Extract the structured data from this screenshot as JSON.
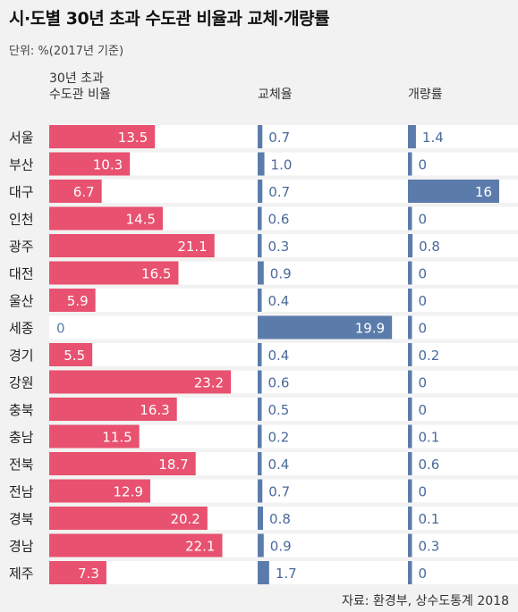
{
  "title": "시·도별 30년 초과 수도관 비율과 교체·개량률",
  "unit": "단위: %(2017년 기준)",
  "source": "자료: 환경부, 상수도통계 2018",
  "colors": {
    "old_pipe_bar": "#e8516f",
    "rate_bar": "#5b7cab",
    "row_band": "#ffffff",
    "background": "#f2f2f2"
  },
  "chart_data": {
    "type": "bar",
    "orientation": "horizontal",
    "categories": [
      "서울",
      "부산",
      "대구",
      "인천",
      "광주",
      "대전",
      "울산",
      "세종",
      "경기",
      "강원",
      "충북",
      "충남",
      "전북",
      "전남",
      "경북",
      "경남",
      "제주"
    ],
    "series": [
      {
        "name": "30년 초과 수도관 비율",
        "header_lines": [
          "30년 초과",
          "수도관 비율"
        ],
        "values": [
          13.5,
          10.3,
          6.7,
          14.5,
          21.1,
          16.5,
          5.9,
          0,
          5.5,
          23.2,
          16.3,
          11.5,
          18.7,
          12.9,
          20.2,
          22.1,
          7.3
        ],
        "labels": [
          "13.5",
          "10.3",
          "6.7",
          "14.5",
          "21.1",
          "16.5",
          "5.9",
          "0",
          "5.5",
          "23.2",
          "16.3",
          "11.5",
          "18.7",
          "12.9",
          "20.2",
          "22.1",
          "7.3"
        ]
      },
      {
        "name": "교체율",
        "header_lines": [
          "교체율"
        ],
        "values": [
          0.7,
          1.0,
          0.7,
          0.6,
          0.3,
          0.9,
          0.4,
          19.9,
          0.4,
          0.6,
          0.5,
          0.2,
          0.4,
          0.7,
          0.8,
          0.9,
          1.7
        ],
        "labels": [
          "0.7",
          "1.0",
          "0.7",
          "0.6",
          "0.3",
          "0.9",
          "0.4",
          "19.9",
          "0.4",
          "0.6",
          "0.5",
          "0.2",
          "0.4",
          "0.7",
          "0.8",
          "0.9",
          "1.7"
        ]
      },
      {
        "name": "개량률",
        "header_lines": [
          "개량률"
        ],
        "values": [
          1.4,
          0,
          16,
          0,
          0.8,
          0,
          0,
          0,
          0.2,
          0,
          0,
          0.1,
          0.6,
          0,
          0.1,
          0.3,
          0
        ],
        "labels": [
          "1.4",
          "0",
          "16",
          "0",
          "0.8",
          "0",
          "0",
          "0",
          "0.2",
          "0",
          "0",
          "0.1",
          "0.6",
          "0",
          "0.1",
          "0.3",
          "0"
        ]
      }
    ]
  }
}
